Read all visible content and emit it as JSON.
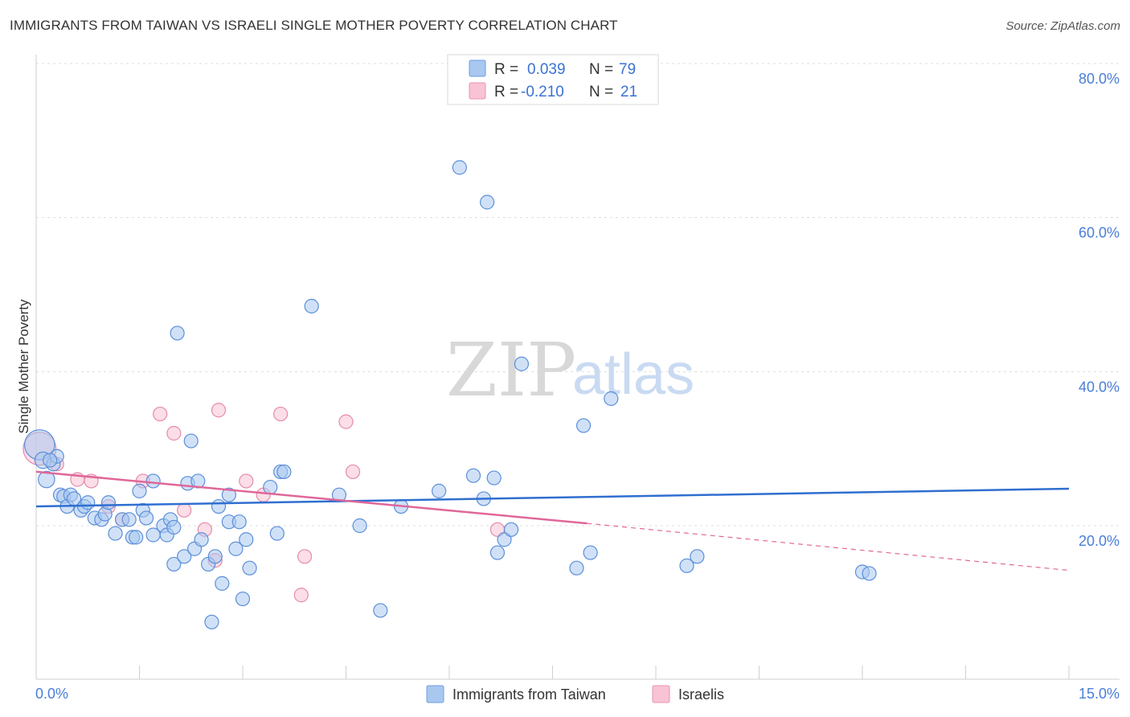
{
  "header": {
    "title": "IMMIGRANTS FROM TAIWAN VS ISRAELI SINGLE MOTHER POVERTY CORRELATION CHART",
    "source": "Source: ZipAtlas.com"
  },
  "watermark": {
    "zip": "ZIP",
    "atlas": "atlas"
  },
  "legend": {
    "rows": [
      {
        "r_label": "R =",
        "r_value": "0.039",
        "n_label": "N =",
        "n_value": "79",
        "color": "#a9c8f0",
        "stroke": "#6d9de0"
      },
      {
        "r_label": "R =",
        "r_value": "-0.210",
        "n_label": "N =",
        "n_value": "21",
        "color": "#f8c3d4",
        "stroke": "#e893b0"
      }
    ]
  },
  "colors": {
    "taiwan_fill": "#a9c8f0",
    "taiwan_stroke": "#5b8fd9",
    "israeli_fill": "#f8c3d4",
    "israeli_stroke": "#e68aab",
    "taiwan_line": "#2f6fd0",
    "israeli_line": "#e0679a"
  },
  "chart_data": {
    "type": "scatter",
    "title": "IMMIGRANTS FROM TAIWAN VS ISRAELI SINGLE MOTHER POVERTY CORRELATION CHART",
    "xlabel": "",
    "ylabel": "Single Mother Poverty",
    "xlim": [
      0,
      15
    ],
    "ylim": [
      0,
      83
    ],
    "x_tick_labels": {
      "left": "0.0%",
      "right": "15.0%"
    },
    "y_ticks": [
      {
        "value": 20,
        "label": "20.0%"
      },
      {
        "value": 40,
        "label": "40.0%"
      },
      {
        "value": 60,
        "label": "60.0%"
      },
      {
        "value": 80,
        "label": "80.0%"
      }
    ],
    "series": [
      {
        "name": "Immigrants from Taiwan",
        "trend": {
          "x0": 0,
          "y0": 22.5,
          "x1": 15,
          "y1": 24.8
        },
        "points": [
          [
            0.05,
            30.5,
            2.2
          ],
          [
            0.1,
            28.5,
            1.2
          ],
          [
            0.15,
            26.0,
            1.2
          ],
          [
            0.25,
            28.0,
            1
          ],
          [
            0.3,
            29.0,
            1
          ],
          [
            0.35,
            24.0,
            1
          ],
          [
            0.4,
            23.8,
            1
          ],
          [
            0.45,
            22.5,
            1
          ],
          [
            0.5,
            24.0,
            1
          ],
          [
            0.55,
            23.5,
            1
          ],
          [
            0.65,
            22.0,
            1
          ],
          [
            0.7,
            22.5,
            1
          ],
          [
            0.75,
            23.0,
            1
          ],
          [
            0.85,
            21.0,
            1
          ],
          [
            0.95,
            20.8,
            1
          ],
          [
            1.0,
            21.5,
            1
          ],
          [
            1.05,
            23.0,
            1
          ],
          [
            1.15,
            19.0,
            1
          ],
          [
            1.25,
            20.8,
            1
          ],
          [
            1.35,
            20.8,
            1
          ],
          [
            1.4,
            18.5,
            1
          ],
          [
            1.45,
            18.5,
            1
          ],
          [
            1.5,
            24.5,
            1
          ],
          [
            1.55,
            22.0,
            1
          ],
          [
            1.6,
            21.0,
            1
          ],
          [
            1.7,
            18.8,
            1
          ],
          [
            1.7,
            25.8,
            1
          ],
          [
            1.85,
            20.0,
            1
          ],
          [
            1.9,
            18.8,
            1
          ],
          [
            1.95,
            20.8,
            1
          ],
          [
            2.0,
            19.8,
            1
          ],
          [
            2.0,
            15.0,
            1
          ],
          [
            2.05,
            45.0,
            1
          ],
          [
            2.15,
            16.0,
            1
          ],
          [
            2.2,
            25.5,
            1
          ],
          [
            2.25,
            31.0,
            1
          ],
          [
            2.3,
            17.0,
            1
          ],
          [
            2.35,
            25.8,
            1
          ],
          [
            2.4,
            18.2,
            1
          ],
          [
            2.5,
            15.0,
            1
          ],
          [
            2.55,
            7.5,
            1
          ],
          [
            2.6,
            16.0,
            1
          ],
          [
            2.65,
            22.5,
            1
          ],
          [
            2.7,
            12.5,
            1
          ],
          [
            2.8,
            24.0,
            1
          ],
          [
            2.8,
            20.5,
            1
          ],
          [
            2.9,
            17.0,
            1
          ],
          [
            2.95,
            20.5,
            1
          ],
          [
            3.0,
            10.5,
            1
          ],
          [
            3.05,
            18.2,
            1
          ],
          [
            3.1,
            14.5,
            1
          ],
          [
            3.4,
            25.0,
            1
          ],
          [
            3.5,
            19.0,
            1
          ],
          [
            3.55,
            27.0,
            1
          ],
          [
            3.6,
            27.0,
            1
          ],
          [
            4.0,
            48.5,
            1
          ],
          [
            4.4,
            24.0,
            1
          ],
          [
            4.7,
            20.0,
            1
          ],
          [
            5.0,
            9.0,
            1
          ],
          [
            5.3,
            22.5,
            1
          ],
          [
            5.85,
            24.5,
            1
          ],
          [
            6.15,
            66.5,
            1
          ],
          [
            6.35,
            26.5,
            1
          ],
          [
            6.5,
            23.5,
            1
          ],
          [
            6.55,
            62.0,
            1
          ],
          [
            6.65,
            26.2,
            1
          ],
          [
            6.7,
            16.5,
            1
          ],
          [
            6.8,
            18.2,
            1
          ],
          [
            6.9,
            19.5,
            1
          ],
          [
            7.05,
            41.0,
            1
          ],
          [
            7.85,
            14.5,
            1
          ],
          [
            7.95,
            33.0,
            1
          ],
          [
            8.05,
            16.5,
            1
          ],
          [
            8.35,
            36.5,
            1
          ],
          [
            9.45,
            14.8,
            1
          ],
          [
            9.6,
            16.0,
            1
          ],
          [
            12.0,
            14.0,
            1
          ],
          [
            12.1,
            13.8,
            1
          ],
          [
            0.2,
            28.5,
            1
          ]
        ]
      },
      {
        "name": "Israelis",
        "trend": {
          "x0": 0,
          "y0": 27.0,
          "x1": 8.0,
          "y1": 20.3,
          "dash_x1": 15,
          "dash_y1": 14.2
        },
        "points": [
          [
            0.05,
            30.0,
            2.4
          ],
          [
            0.3,
            28.0,
            1
          ],
          [
            0.6,
            26.0,
            1
          ],
          [
            0.8,
            25.8,
            1
          ],
          [
            1.05,
            22.5,
            1
          ],
          [
            1.25,
            20.8,
            1
          ],
          [
            1.55,
            25.8,
            1
          ],
          [
            1.8,
            34.5,
            1
          ],
          [
            2.0,
            32.0,
            1
          ],
          [
            2.15,
            22.0,
            1
          ],
          [
            2.45,
            19.5,
            1
          ],
          [
            2.6,
            15.5,
            1
          ],
          [
            2.65,
            35.0,
            1
          ],
          [
            3.05,
            25.8,
            1
          ],
          [
            3.3,
            24.0,
            1
          ],
          [
            3.55,
            34.5,
            1
          ],
          [
            3.85,
            11.0,
            1
          ],
          [
            3.9,
            16.0,
            1
          ],
          [
            4.5,
            33.5,
            1
          ],
          [
            4.6,
            27.0,
            1
          ],
          [
            6.7,
            19.5,
            1
          ]
        ]
      }
    ],
    "legend_entries": [
      "Immigrants from Taiwan",
      "Israelis"
    ]
  }
}
